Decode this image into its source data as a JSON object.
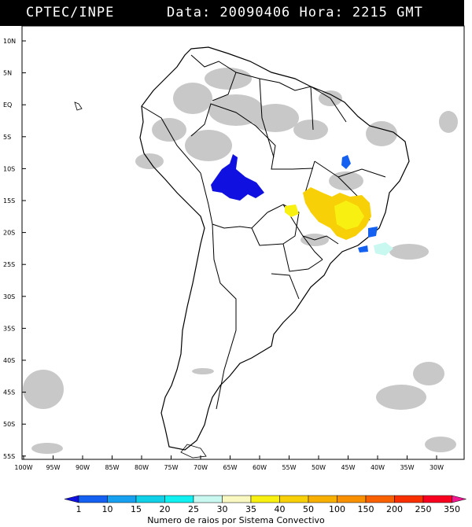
{
  "header": {
    "source": "CPTEC/INPE",
    "datetime": "Data: 20090406 Hora: 2215 GMT"
  },
  "axes": {
    "lat_labels": [
      "10N",
      "5N",
      "EQ",
      "5S",
      "10S",
      "15S",
      "20S",
      "25S",
      "30S",
      "35S",
      "40S",
      "45S",
      "50S",
      "55S"
    ],
    "lon_labels": [
      "100W",
      "95W",
      "90W",
      "85W",
      "80W",
      "75W",
      "70W",
      "65W",
      "60W",
      "55W",
      "50W",
      "45W",
      "40W",
      "35W",
      "30W"
    ]
  },
  "colorbar": {
    "ticks": [
      "1",
      "10",
      "15",
      "20",
      "25",
      "30",
      "35",
      "40",
      "50",
      "100",
      "150",
      "200",
      "250",
      "350"
    ],
    "colors": [
      "#1010e0",
      "#1460f0",
      "#18a0f0",
      "#10d0e8",
      "#10f0f0",
      "#c8f8f0",
      "#f8f8c0",
      "#f8f010",
      "#f8d008",
      "#f8b000",
      "#f89000",
      "#f86000",
      "#f83000",
      "#f80020",
      "#f01890"
    ],
    "label": "Numero de raios por Sistema Convectivo"
  },
  "map": {
    "ocean_color": "#ffffff",
    "cloud_color": "#c8c8c8",
    "storm_colors": {
      "blue": "#1010e0",
      "mid_blue": "#1460f0",
      "yellow": "#f8f010",
      "orange": "#f8d008",
      "light_cyan": "#c8f8f0"
    }
  }
}
